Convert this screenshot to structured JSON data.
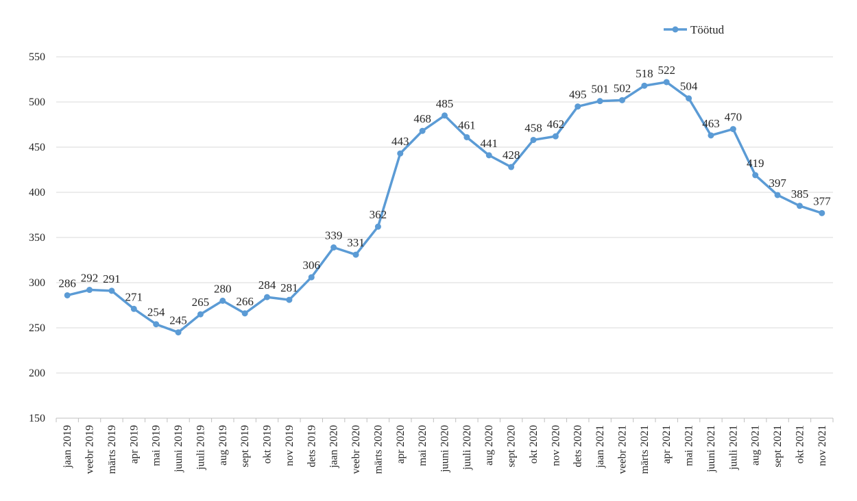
{
  "chart_data": {
    "type": "line",
    "title": "",
    "xlabel": "",
    "ylabel": "",
    "ylim": [
      150,
      550
    ],
    "yticks": [
      150,
      200,
      250,
      300,
      350,
      400,
      450,
      500,
      550
    ],
    "grid": true,
    "legend_position": "top-right",
    "colors": {
      "series": "#5b9bd5",
      "grid": "#d9d9d9",
      "text": "#262626"
    },
    "categories": [
      "jaan 2019",
      "veebr 2019",
      "märts 2019",
      "apr 2019",
      "mai 2019",
      "juuni 2019",
      "juuli 2019",
      "aug 2019",
      "sept 2019",
      "okt 2019",
      "nov 2019",
      "dets 2019",
      "jaan 2020",
      "veebr 2020",
      "märts 2020",
      "apr 2020",
      "mai 2020",
      "juuni 2020",
      "juuli 2020",
      "aug 2020",
      "sept 2020",
      "okt 2020",
      "nov 2020",
      "dets 2020",
      "jaan 2021",
      "veebr 2021",
      "märts 2021",
      "apr 2021",
      "mai 2021",
      "juuni 2021",
      "juuli 2021",
      "aug 2021",
      "sept 2021",
      "okt 2021",
      "nov 2021"
    ],
    "series": [
      {
        "name": "Töötud",
        "values": [
          286,
          292,
          291,
          271,
          254,
          245,
          265,
          280,
          266,
          284,
          281,
          306,
          339,
          331,
          362,
          443,
          468,
          485,
          461,
          441,
          428,
          458,
          462,
          495,
          501,
          502,
          518,
          522,
          504,
          463,
          470,
          419,
          397,
          385,
          377
        ]
      }
    ]
  }
}
